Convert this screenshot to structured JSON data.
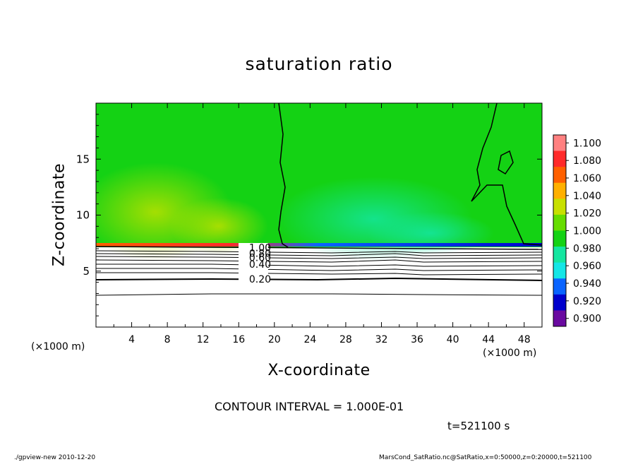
{
  "chart_data": {
    "type": "heatmap",
    "title": "saturation ratio",
    "xlabel": "X-coordinate",
    "ylabel": "Z-coordinate",
    "x_unit": "(×1000 m)",
    "y_unit": "(×1000 m)",
    "xlim": [
      0,
      50
    ],
    "ylim": [
      0,
      20
    ],
    "x_ticks": [
      4,
      8,
      12,
      16,
      20,
      24,
      28,
      32,
      36,
      40,
      44,
      48
    ],
    "y_ticks": [
      5,
      10,
      15
    ],
    "colorbar": {
      "levels": [
        "1.100",
        "1.080",
        "1.060",
        "1.040",
        "1.020",
        "1.000",
        "0.980",
        "0.960",
        "0.940",
        "0.920",
        "0.900"
      ],
      "colors": [
        "#ff8080",
        "#ff2a2a",
        "#ff6000",
        "#ffb000",
        "#c8e000",
        "#66dd00",
        "#14d214",
        "#14e6a0",
        "#14e6e6",
        "#0a64ff",
        "#0000cc",
        "#6a0aa0"
      ]
    },
    "contour_interval": "1.000E-01",
    "contour_labels": [
      {
        "text": "1.00",
        "x": 17,
        "z": 7.1
      },
      {
        "text": "0.80",
        "x": 17,
        "z": 6.6
      },
      {
        "text": "0.60",
        "x": 17,
        "z": 6.2
      },
      {
        "text": "0.40",
        "x": 17,
        "z": 5.6
      },
      {
        "text": "0.20",
        "x": 17,
        "z": 4.3
      }
    ],
    "saturation_front_z": 7.0,
    "boundary_value": "1.00"
  },
  "labels": {
    "contour_text": "CONTOUR INTERVAL = 1.000E-01",
    "time": "t=521100 s",
    "footer_left": "./gpview-new   2010-12-20",
    "footer_right": "MarsCond_SatRatio.nc@SatRatio,x=0:50000,z=0:20000,t=521100"
  }
}
